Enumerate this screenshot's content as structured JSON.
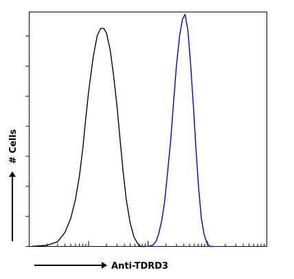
{
  "chart_data": {
    "type": "line",
    "title": "",
    "xlabel": "Anti-TDRD3",
    "ylabel": "# Cells",
    "x_scale": "log",
    "xlim": [
      1,
      10000
    ],
    "ylim": [
      0,
      100
    ],
    "grid": false,
    "series": [
      {
        "color": "#000000",
        "points": [
          [
            1.1,
            0
          ],
          [
            2,
            0.5
          ],
          [
            3,
            2
          ],
          [
            4,
            6
          ],
          [
            5,
            12
          ],
          [
            6,
            20
          ],
          [
            7,
            30
          ],
          [
            8,
            42
          ],
          [
            9,
            55
          ],
          [
            10,
            66
          ],
          [
            12,
            81
          ],
          [
            14,
            90
          ],
          [
            16,
            93
          ],
          [
            18,
            93
          ],
          [
            20,
            91
          ],
          [
            23,
            84
          ],
          [
            26,
            74
          ],
          [
            30,
            60
          ],
          [
            34,
            45
          ],
          [
            38,
            32
          ],
          [
            43,
            20
          ],
          [
            50,
            10
          ],
          [
            58,
            4
          ],
          [
            66,
            1.5
          ],
          [
            75,
            0
          ],
          [
            90,
            0
          ]
        ]
      },
      {
        "color": "#0000cc",
        "points": [
          [
            100,
            0
          ],
          [
            120,
            0.5
          ],
          [
            135,
            2
          ],
          [
            150,
            5
          ],
          [
            170,
            11
          ],
          [
            190,
            19
          ],
          [
            210,
            30
          ],
          [
            240,
            45
          ],
          [
            270,
            62
          ],
          [
            300,
            77
          ],
          [
            340,
            90
          ],
          [
            380,
            97
          ],
          [
            420,
            99
          ],
          [
            470,
            92
          ],
          [
            520,
            78
          ],
          [
            580,
            60
          ],
          [
            640,
            42
          ],
          [
            710,
            25
          ],
          [
            790,
            12
          ],
          [
            880,
            5
          ],
          [
            980,
            1.5
          ],
          [
            1100,
            0
          ],
          [
            1250,
            0
          ]
        ]
      }
    ],
    "annotations": {
      "arrow_x_label": "Anti-TDRD3",
      "arrow_y_label": "# Cells"
    }
  }
}
